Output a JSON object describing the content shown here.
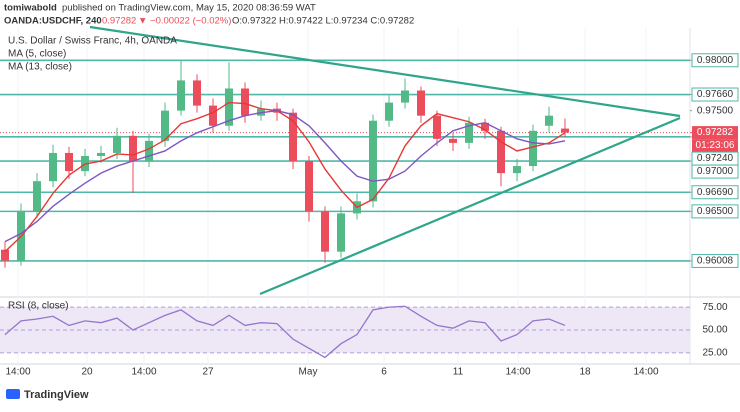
{
  "chart_data": {
    "type": "candlestick",
    "header": {
      "author": "tomiwabold",
      "published": "published on TradingView.com, May 15, 2020 08:36:59 WAT",
      "symbol": "OANDA:USDCHF, 240",
      "price": "0.97282",
      "change": "▼ −0.00022 (−0.02%)",
      "ohlc": "O:0.97322 H:0.97422 L:0.97234 C:0.97282"
    },
    "title": "U.S. Dollar / Swiss Franc, 4h, OANDA",
    "up_color": "#53b987",
    "down_color": "#eb4d5c",
    "candles": {
      "open": [
        0.9612,
        0.9601,
        0.965,
        0.968,
        0.9708,
        0.969,
        0.9705,
        0.9708,
        0.9725,
        0.97,
        0.972,
        0.975,
        0.978,
        0.9755,
        0.9735,
        0.9772,
        0.9745,
        0.9752,
        0.9748,
        0.97,
        0.965,
        0.961,
        0.9648,
        0.966,
        0.974,
        0.9758,
        0.977,
        0.9745,
        0.9722,
        0.9718,
        0.9738,
        0.973,
        0.9688,
        0.9695,
        0.9735,
        0.97322
      ],
      "high": [
        0.962,
        0.9658,
        0.9688,
        0.9716,
        0.9714,
        0.9712,
        0.9715,
        0.9733,
        0.973,
        0.9727,
        0.9758,
        0.98,
        0.9786,
        0.9762,
        0.9798,
        0.9778,
        0.976,
        0.9758,
        0.9752,
        0.9705,
        0.9655,
        0.9655,
        0.9668,
        0.9746,
        0.9765,
        0.9782,
        0.9774,
        0.975,
        0.9728,
        0.9744,
        0.9742,
        0.9734,
        0.9702,
        0.9736,
        0.9754,
        0.97422
      ],
      "low": [
        0.9594,
        0.9596,
        0.9644,
        0.9674,
        0.9682,
        0.9685,
        0.9698,
        0.9702,
        0.9668,
        0.9694,
        0.9714,
        0.9745,
        0.9748,
        0.9728,
        0.973,
        0.9738,
        0.974,
        0.974,
        0.9692,
        0.964,
        0.9599,
        0.9604,
        0.9642,
        0.9654,
        0.9734,
        0.9752,
        0.9738,
        0.9715,
        0.971,
        0.9712,
        0.9722,
        0.9675,
        0.968,
        0.969,
        0.9728,
        0.97234
      ],
      "close": [
        0.9601,
        0.965,
        0.968,
        0.9708,
        0.969,
        0.9705,
        0.9708,
        0.9725,
        0.97,
        0.972,
        0.975,
        0.978,
        0.9755,
        0.9735,
        0.9772,
        0.9745,
        0.9752,
        0.9748,
        0.97,
        0.965,
        0.961,
        0.9648,
        0.966,
        0.974,
        0.9758,
        0.977,
        0.9745,
        0.9722,
        0.9718,
        0.9738,
        0.973,
        0.9688,
        0.9695,
        0.973,
        0.9745,
        0.97282
      ]
    },
    "series": [
      {
        "name": "MA (5, close)",
        "color": "#e53935",
        "values": [
          0.961,
          0.9625,
          0.9645,
          0.9668,
          0.9686,
          0.9697,
          0.97,
          0.9707,
          0.9706,
          0.9712,
          0.9721,
          0.9737,
          0.9742,
          0.9748,
          0.9758,
          0.9757,
          0.9752,
          0.975,
          0.974,
          0.9719,
          0.9692,
          0.9671,
          0.9654,
          0.9662,
          0.9683,
          0.9715,
          0.9735,
          0.9747,
          0.9743,
          0.9739,
          0.9731,
          0.9719,
          0.971,
          0.9714,
          0.9718,
          0.9728
        ]
      },
      {
        "name": "MA (13, close)",
        "color": "#7e57c2",
        "values": [
          0.962,
          0.9628,
          0.964,
          0.9655,
          0.9667,
          0.9678,
          0.9688,
          0.9695,
          0.97,
          0.9705,
          0.971,
          0.972,
          0.9728,
          0.9734,
          0.974,
          0.9745,
          0.9748,
          0.975,
          0.9746,
          0.9735,
          0.9718,
          0.97,
          0.9685,
          0.968,
          0.9682,
          0.969,
          0.9705,
          0.9718,
          0.973,
          0.9735,
          0.9738,
          0.973,
          0.9722,
          0.9718,
          0.9717,
          0.972
        ]
      }
    ],
    "ylim": [
      0.9566,
      0.9838
    ],
    "yticks": [
      {
        "value": 0.98,
        "label": "0.98000"
      },
      {
        "value": 0.9766,
        "label": "0.97660"
      },
      {
        "value": 0.975,
        "label": "0.97500"
      },
      {
        "value": 0.9724,
        "label": "0.97240"
      },
      {
        "value": 0.97,
        "label": "0.97000"
      },
      {
        "value": 0.9669,
        "label": "0.96690"
      },
      {
        "value": 0.965,
        "label": "0.96500"
      },
      {
        "value": 0.96008,
        "label": "0.96008"
      }
    ],
    "levels": [
      0.98,
      0.9766,
      0.9724,
      0.97,
      0.9669,
      0.965,
      0.96008
    ],
    "level_color": "#4fb8a8",
    "last_price": {
      "value": 0.97282,
      "label": "0.97282"
    },
    "countdown": "01:23:06",
    "xlabels": [
      "14:00",
      "20",
      "14:00",
      "27",
      "May",
      "6",
      "11",
      "14:00",
      "18",
      "14:00"
    ],
    "rsi": {
      "name": "RSI (8, close)",
      "color": "#9575cd",
      "values": [
        45,
        60,
        62,
        65,
        55,
        60,
        58,
        63,
        50,
        58,
        66,
        72,
        60,
        55,
        66,
        55,
        58,
        57,
        40,
        30,
        20,
        35,
        45,
        72,
        75,
        76,
        65,
        55,
        52,
        60,
        58,
        38,
        45,
        60,
        62,
        55
      ],
      "ylim": [
        15,
        85
      ],
      "yticks": [
        {
          "value": 75,
          "label": "75.00"
        },
        {
          "value": 50,
          "label": "50.00"
        },
        {
          "value": 25,
          "label": "25.00"
        }
      ]
    },
    "logo": "TradingView"
  }
}
